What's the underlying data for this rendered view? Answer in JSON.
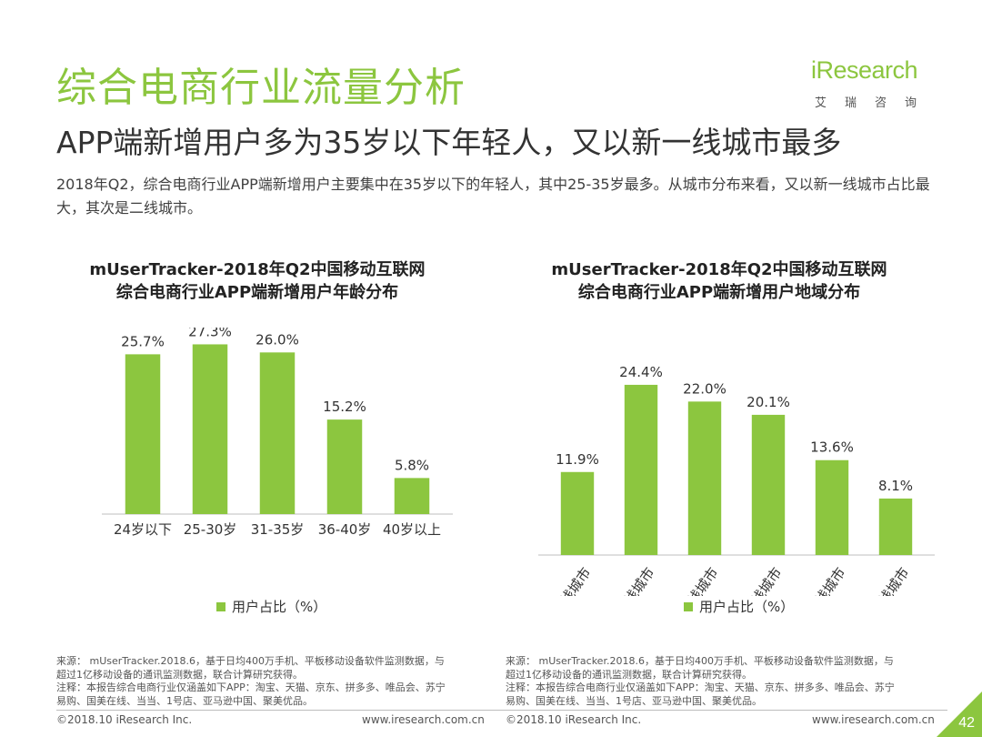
{
  "header": {
    "title": "综合电商行业流量分析",
    "subtitle": "APP端新增用户多为35岁以下年轻人，又以新一线城市最多",
    "description": "2018年Q2，综合电商行业APP端新增用户主要集中在35岁以下的年轻人，其中25-35岁最多。从城市分布来看，又以新一线城市占比最大，其次是二线城市。"
  },
  "logo": {
    "word": "iResearch",
    "cn": "艾瑞咨询"
  },
  "colors": {
    "accent": "#8cc63f",
    "bar": "#8cc63f"
  },
  "chart_data": [
    {
      "type": "bar",
      "title_line1": "mUserTracker-2018年Q2中国移动互联网",
      "title_line2": "综合电商行业APP端新增用户年龄分布",
      "categories": [
        "24岁以下",
        "25-30岁",
        "31-35岁",
        "36-40岁",
        "40岁以上"
      ],
      "values": [
        25.7,
        27.3,
        26.0,
        15.2,
        5.8
      ],
      "value_labels": [
        "25.7%",
        "27.3%",
        "26.0%",
        "15.2%",
        "5.8%"
      ],
      "legend": "用户占比（%）",
      "legend_position": "bottom",
      "ylim": [
        0,
        30
      ],
      "grid": false
    },
    {
      "type": "bar",
      "title_line1": "mUserTracker-2018年Q2中国移动互联网",
      "title_line2": "综合电商行业APP端新增用户地域分布",
      "categories": [
        "一线城市",
        "新一线城市",
        "二线城市",
        "三线城市",
        "四线城市",
        "五线城市"
      ],
      "values": [
        11.9,
        24.4,
        22.0,
        20.1,
        13.6,
        8.1
      ],
      "value_labels": [
        "11.9%",
        "24.4%",
        "22.0%",
        "20.1%",
        "13.6%",
        "8.1%"
      ],
      "legend": "用户占比（%）",
      "legend_position": "bottom",
      "ylim": [
        0,
        30
      ],
      "grid": false,
      "rotated_tick_labels": true
    }
  ],
  "sources": [
    {
      "line1": "来源： mUserTracker.2018.6，基于日均400万手机、平板移动设备软件监测数据，与",
      "line2": "超过1亿移动设备的通讯监测数据，联合计算研究获得。",
      "line3": "注释：本报告综合电商行业仅涵盖如下APP：淘宝、天猫、京东、拼多多、唯品会、苏宁",
      "line4": "易购、国美在线、当当、1号店、亚马逊中国、聚美优品。"
    },
    {
      "line1": "来源： mUserTracker.2018.6，基于日均400万手机、平板移动设备软件监测数据，与",
      "line2": "超过1亿移动设备的通讯监测数据，联合计算研究获得。",
      "line3": "注释：本报告综合电商行业仅涵盖如下APP：淘宝、天猫、京东、拼多多、唯品会、苏宁",
      "line4": "易购、国美在线、当当、1号店、亚马逊中国、聚美优品。"
    }
  ],
  "footer": {
    "left_copyright": "©2018.10 iResearch Inc.",
    "left_url": "www.iresearch.com.cn",
    "right_copyright": "©2018.10 iResearch Inc.",
    "right_url": "www.iresearch.com.cn",
    "page_number": "42"
  }
}
